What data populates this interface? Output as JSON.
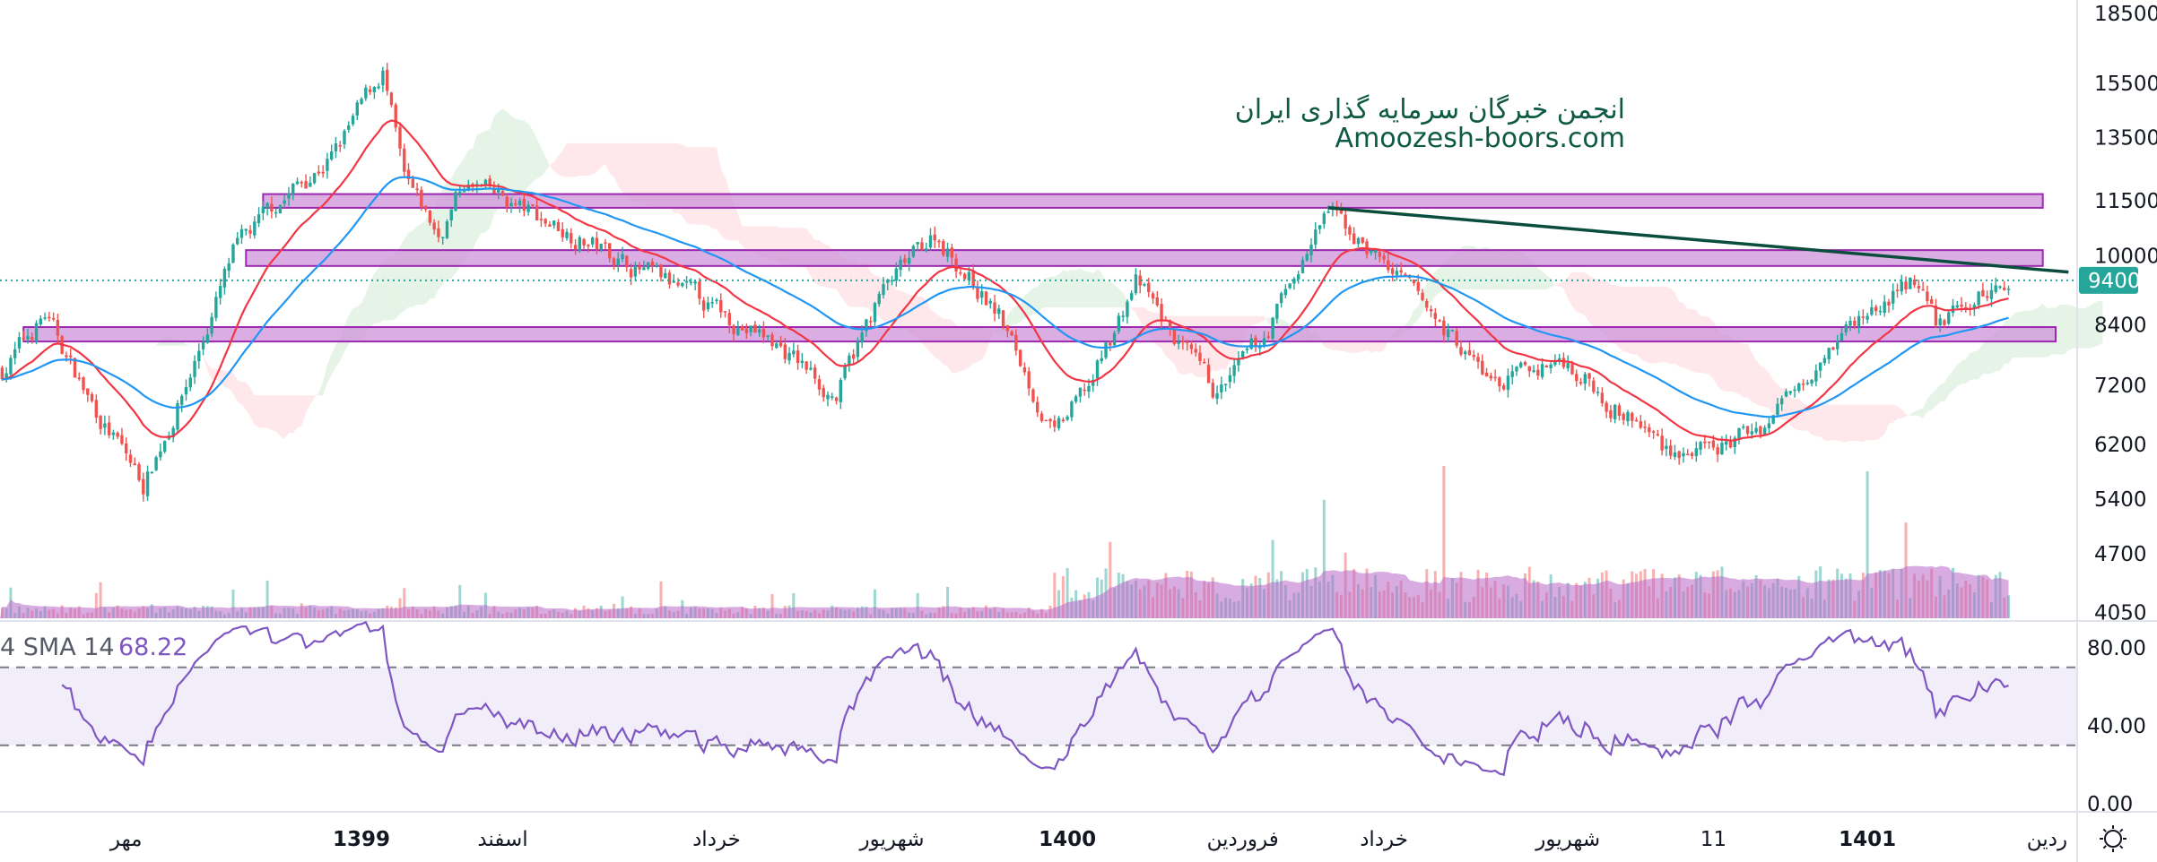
{
  "chart_data": {
    "type": "candlestick",
    "scale": "log",
    "bars": 470,
    "price_anchors": [
      [
        0,
        7500
      ],
      [
        10,
        8600
      ],
      [
        20,
        7000
      ],
      [
        33,
        5600
      ],
      [
        43,
        7200
      ],
      [
        54,
        10000
      ],
      [
        65,
        11500
      ],
      [
        78,
        13000
      ],
      [
        89,
        16000
      ],
      [
        94,
        12000
      ],
      [
        102,
        10500
      ],
      [
        108,
        12000
      ],
      [
        130,
        10800
      ],
      [
        181,
        8000
      ],
      [
        195,
        7000
      ],
      [
        205,
        9000
      ],
      [
        218,
        10600
      ],
      [
        233,
        8600
      ],
      [
        246,
        6300
      ],
      [
        255,
        7300
      ],
      [
        265,
        9400
      ],
      [
        278,
        7600
      ],
      [
        284,
        7000
      ],
      [
        294,
        8000
      ],
      [
        310,
        11200
      ],
      [
        323,
        9800
      ],
      [
        349,
        7200
      ],
      [
        365,
        7700
      ],
      [
        388,
        6200
      ],
      [
        399,
        6000
      ],
      [
        413,
        6600
      ],
      [
        426,
        8000
      ],
      [
        447,
        9400
      ],
      [
        452,
        8400
      ],
      [
        469,
        9400
      ]
    ],
    "last_price": "9400",
    "y_axis_ticks": [
      "18500",
      "15500",
      "13500",
      "11500",
      "10000",
      "8400",
      "7200",
      "6200",
      "5400",
      "4700",
      "4050"
    ],
    "y_axis_values": [
      18500,
      15500,
      13500,
      11500,
      10000,
      8400,
      7200,
      6200,
      5400,
      4700,
      4050
    ],
    "x_axis_ticks": [
      {
        "label": "مهر",
        "bar": 29,
        "bold": false
      },
      {
        "label": "1399",
        "bar": 84,
        "bold": true
      },
      {
        "label": "اسفند",
        "bar": 117,
        "bold": false
      },
      {
        "label": "خرداد",
        "bar": 167,
        "bold": false
      },
      {
        "label": "شهریور",
        "bar": 208,
        "bold": false
      },
      {
        "label": "1400",
        "bar": 249,
        "bold": true
      },
      {
        "label": "فروردین",
        "bar": 290,
        "bold": false
      },
      {
        "label": "خرداد",
        "bar": 323,
        "bold": false
      },
      {
        "label": "شهریور",
        "bar": 366,
        "bold": false
      },
      {
        "label": "11",
        "bar": 400,
        "bold": false
      },
      {
        "label": "1401",
        "bar": 436,
        "bold": true
      },
      {
        "label": "ردین",
        "bar": 478,
        "bold": false
      }
    ],
    "zones": [
      {
        "name": "resistance-zone-top",
        "low": 11300,
        "high": 11700,
        "from_bar": 61,
        "to_bar": 477
      },
      {
        "name": "resistance-zone-middle",
        "low": 9750,
        "high": 10150,
        "from_bar": 57,
        "to_bar": 477
      },
      {
        "name": "support-zone",
        "low": 8050,
        "high": 8350,
        "from_bar": 5,
        "to_bar": 480
      }
    ],
    "trendline": {
      "from": [
        310,
        11300
      ],
      "to": [
        483,
        9600
      ]
    },
    "moving_averages": [
      {
        "name": "ema-fast",
        "period": 20,
        "color": "#f23645"
      },
      {
        "name": "ema-slow",
        "period": 50,
        "color": "#2196f3"
      }
    ],
    "rsi": {
      "title": "4 SMA 14",
      "value": "68.22",
      "upper": 70,
      "lower": 30,
      "ticks": [
        "80.00",
        "40.00",
        "0.00"
      ],
      "tick_values": [
        80,
        40,
        0
      ]
    },
    "watermark": {
      "line1": "انجمن خبرگان سرمایه گذاری ایران",
      "line2": "Amoozesh-boors.com"
    }
  },
  "colors": {
    "up": "#26a69a",
    "down": "#ef5350",
    "zone_fill": "#ce93d8",
    "zone_border": "#9c27b0",
    "trendline": "#0b4d3c",
    "rsi": "#7e57c2",
    "volume_ma": "#ba68c8"
  },
  "icons": {
    "settings": "gear-icon"
  }
}
